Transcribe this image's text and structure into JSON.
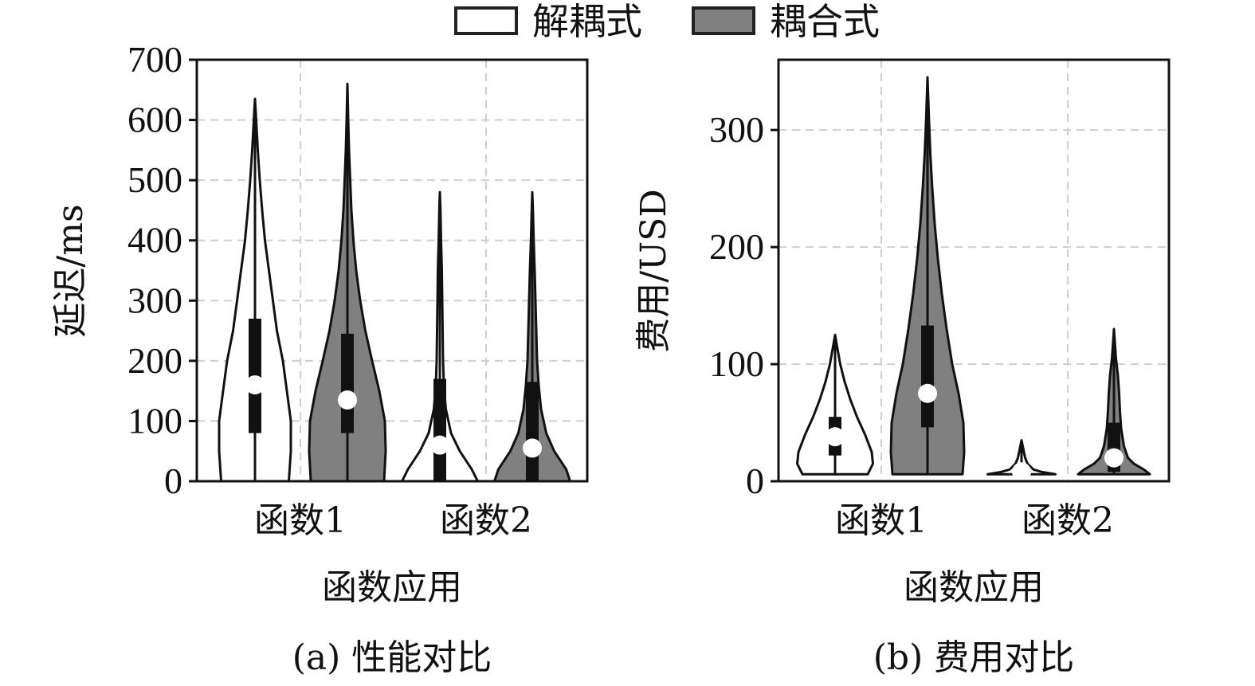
{
  "legend": {
    "entries": [
      {
        "label": "解耦式",
        "color": "#ffffff"
      },
      {
        "label": "耦合式",
        "color": "#808080"
      }
    ]
  },
  "chart_data": [
    {
      "type": "violin",
      "caption": "(a)  性能对比",
      "xlabel": "函数应用",
      "ylabel": "延迟/ms",
      "categories": [
        "函数1",
        "函数2"
      ],
      "ylim": [
        0,
        700
      ],
      "yticks": [
        0,
        100,
        200,
        300,
        400,
        500,
        600,
        700
      ],
      "grid": true,
      "series": [
        {
          "name": "解耦式",
          "color": "#ffffff",
          "violins": [
            {
              "min": 0,
              "q1": 80,
              "median": 160,
              "q3": 270,
              "max": 635,
              "profile": [
                [
                  0,
                  0.85
                ],
                [
                  50,
                  0.9
                ],
                [
                  100,
                  0.9
                ],
                [
                  150,
                  0.8
                ],
                [
                  200,
                  0.7
                ],
                [
                  250,
                  0.55
                ],
                [
                  300,
                  0.45
                ],
                [
                  350,
                  0.35
                ],
                [
                  400,
                  0.25
                ],
                [
                  450,
                  0.18
                ],
                [
                  500,
                  0.12
                ],
                [
                  550,
                  0.07
                ],
                [
                  600,
                  0.03
                ],
                [
                  635,
                  0.0
                ]
              ]
            },
            {
              "min": 0,
              "q1": 0,
              "median": 60,
              "q3": 170,
              "max": 480,
              "profile": [
                [
                  0,
                  0.95
                ],
                [
                  20,
                  0.8
                ],
                [
                  50,
                  0.5
                ],
                [
                  80,
                  0.28
                ],
                [
                  120,
                  0.15
                ],
                [
                  160,
                  0.1
                ],
                [
                  200,
                  0.08
                ],
                [
                  250,
                  0.07
                ],
                [
                  300,
                  0.06
                ],
                [
                  350,
                  0.05
                ],
                [
                  400,
                  0.03
                ],
                [
                  450,
                  0.015
                ],
                [
                  480,
                  0.0
                ]
              ]
            }
          ]
        },
        {
          "name": "耦合式",
          "color": "#808080",
          "violins": [
            {
              "min": 0,
              "q1": 80,
              "median": 135,
              "q3": 245,
              "max": 660,
              "profile": [
                [
                  0,
                  0.92
                ],
                [
                  50,
                  0.96
                ],
                [
                  100,
                  0.94
                ],
                [
                  150,
                  0.8
                ],
                [
                  200,
                  0.62
                ],
                [
                  250,
                  0.45
                ],
                [
                  300,
                  0.32
                ],
                [
                  350,
                  0.22
                ],
                [
                  400,
                  0.15
                ],
                [
                  450,
                  0.1
                ],
                [
                  500,
                  0.07
                ],
                [
                  550,
                  0.04
                ],
                [
                  600,
                  0.02
                ],
                [
                  660,
                  0.0
                ]
              ]
            },
            {
              "min": 0,
              "q1": 0,
              "median": 55,
              "q3": 165,
              "max": 480,
              "profile": [
                [
                  0,
                  0.95
                ],
                [
                  20,
                  0.85
                ],
                [
                  50,
                  0.55
                ],
                [
                  80,
                  0.35
                ],
                [
                  120,
                  0.22
                ],
                [
                  160,
                  0.16
                ],
                [
                  200,
                  0.12
                ],
                [
                  250,
                  0.1
                ],
                [
                  300,
                  0.08
                ],
                [
                  350,
                  0.06
                ],
                [
                  400,
                  0.035
                ],
                [
                  450,
                  0.015
                ],
                [
                  480,
                  0.0
                ]
              ]
            }
          ]
        }
      ]
    },
    {
      "type": "violin",
      "caption": "(b)  费用对比",
      "xlabel": "函数应用",
      "ylabel": "费用/USD",
      "categories": [
        "函数1",
        "函数2"
      ],
      "ylim": [
        0,
        360
      ],
      "yticks": [
        0,
        100,
        200,
        300
      ],
      "grid": true,
      "series": [
        {
          "name": "解耦式",
          "color": "#ffffff",
          "violins": [
            {
              "min": 6,
              "q1": 22,
              "median": 38,
              "q3": 55,
              "max": 125,
              "profile": [
                [
                  6,
                  0.82
                ],
                [
                  15,
                  0.95
                ],
                [
                  25,
                  0.92
                ],
                [
                  40,
                  0.75
                ],
                [
                  55,
                  0.55
                ],
                [
                  70,
                  0.38
                ],
                [
                  85,
                  0.24
                ],
                [
                  100,
                  0.13
                ],
                [
                  115,
                  0.05
                ],
                [
                  125,
                  0.0
                ]
              ]
            },
            {
              "min": 6,
              "q1": 6,
              "median": 8,
              "q3": 12,
              "max": 35,
              "profile": [
                [
                  6,
                  0.85
                ],
                [
                  8,
                  0.5
                ],
                [
                  10,
                  0.3
                ],
                [
                  15,
                  0.15
                ],
                [
                  20,
                  0.09
                ],
                [
                  25,
                  0.06
                ],
                [
                  30,
                  0.03
                ],
                [
                  35,
                  0.0
                ]
              ]
            }
          ]
        },
        {
          "name": "耦合式",
          "color": "#808080",
          "violins": [
            {
              "min": 6,
              "q1": 46,
              "median": 75,
              "q3": 133,
              "max": 345,
              "profile": [
                [
                  6,
                  0.88
                ],
                [
                  25,
                  0.92
                ],
                [
                  50,
                  0.9
                ],
                [
                  75,
                  0.78
                ],
                [
                  100,
                  0.62
                ],
                [
                  130,
                  0.48
                ],
                [
                  160,
                  0.36
                ],
                [
                  190,
                  0.26
                ],
                [
                  220,
                  0.18
                ],
                [
                  250,
                  0.12
                ],
                [
                  280,
                  0.07
                ],
                [
                  310,
                  0.035
                ],
                [
                  345,
                  0.0
                ]
              ]
            },
            {
              "min": 6,
              "q1": 8,
              "median": 20,
              "q3": 50,
              "max": 130,
              "profile": [
                [
                  6,
                  0.9
                ],
                [
                  10,
                  0.75
                ],
                [
                  15,
                  0.5
                ],
                [
                  20,
                  0.35
                ],
                [
                  30,
                  0.25
                ],
                [
                  45,
                  0.18
                ],
                [
                  60,
                  0.15
                ],
                [
                  75,
                  0.13
                ],
                [
                  90,
                  0.1
                ],
                [
                  105,
                  0.05
                ],
                [
                  120,
                  0.02
                ],
                [
                  130,
                  0.0
                ]
              ]
            }
          ]
        }
      ]
    }
  ]
}
